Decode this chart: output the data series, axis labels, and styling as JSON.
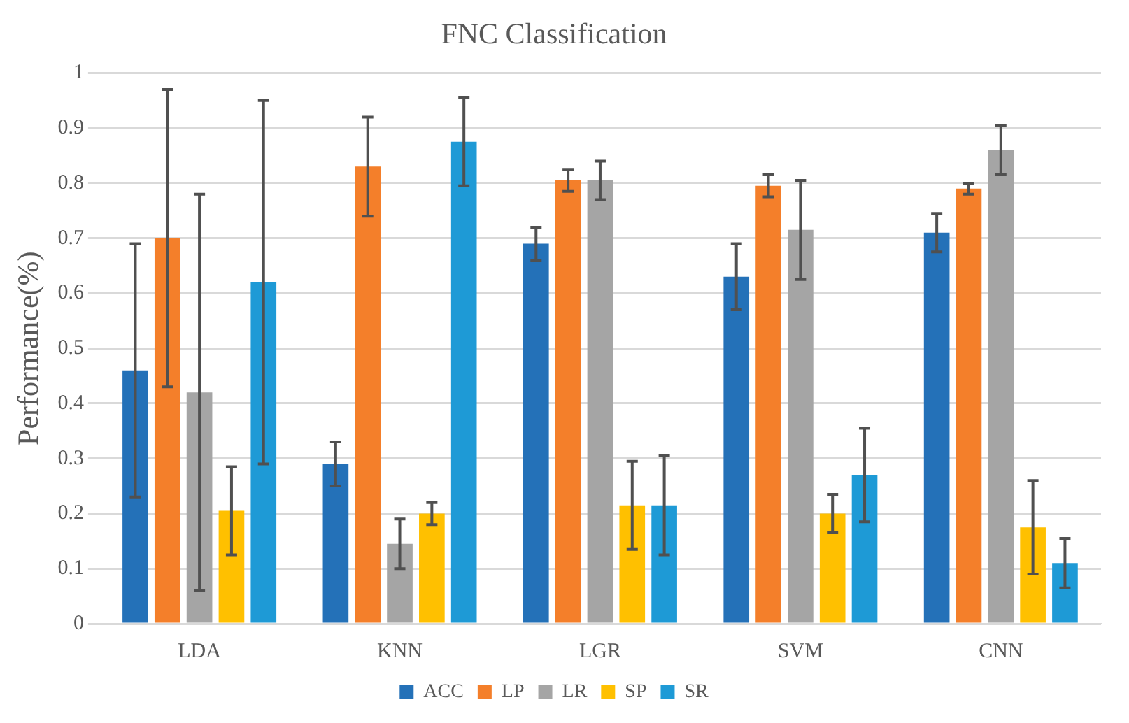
{
  "chart_data": {
    "type": "bar",
    "title": "FNC Classification",
    "ylabel": "Performance(%)",
    "categories": [
      "LDA",
      "KNN",
      "LGR",
      "SVM",
      "CNN"
    ],
    "series": [
      {
        "name": "ACC",
        "color": "#2471b8",
        "values": [
          0.46,
          0.29,
          0.69,
          0.63,
          0.71
        ],
        "errors": [
          0.23,
          0.04,
          0.03,
          0.06,
          0.035
        ]
      },
      {
        "name": "LP",
        "color": "#f47f2a",
        "values": [
          0.7,
          0.83,
          0.805,
          0.795,
          0.79
        ],
        "errors": [
          0.27,
          0.09,
          0.02,
          0.02,
          0.01
        ]
      },
      {
        "name": "LR",
        "color": "#a5a5a5",
        "values": [
          0.42,
          0.145,
          0.805,
          0.715,
          0.86
        ],
        "errors": [
          0.36,
          0.045,
          0.035,
          0.09,
          0.045
        ]
      },
      {
        "name": "SP",
        "color": "#ffc000",
        "values": [
          0.205,
          0.2,
          0.215,
          0.2,
          0.175
        ],
        "errors": [
          0.08,
          0.02,
          0.08,
          0.035,
          0.085
        ]
      },
      {
        "name": "SR",
        "color": "#1e9ad6",
        "values": [
          0.62,
          0.875,
          0.215,
          0.27,
          0.11
        ],
        "errors": [
          0.33,
          0.08,
          0.09,
          0.085,
          0.045
        ]
      }
    ],
    "ylim": [
      0,
      1
    ],
    "yticks": [
      0,
      0.1,
      0.2,
      0.3,
      0.4,
      0.5,
      0.6,
      0.7,
      0.8,
      0.9,
      1
    ],
    "grid": "y",
    "legend": "bottom"
  }
}
